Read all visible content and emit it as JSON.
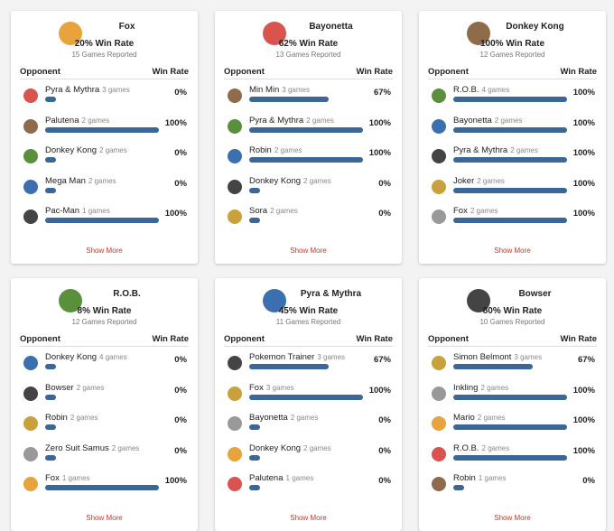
{
  "table_header": {
    "opponent": "Opponent",
    "win_rate": "Win Rate"
  },
  "show_more": "Show More",
  "cards": [
    {
      "character": "Fox",
      "win_rate": "20% Win Rate",
      "games": "15 Games Reported",
      "opponents": [
        {
          "name": "Pyra & Mythra",
          "games": "3 games",
          "win_rate": "0%"
        },
        {
          "name": "Palutena",
          "games": "2 games",
          "win_rate": "100%"
        },
        {
          "name": "Donkey Kong",
          "games": "2 games",
          "win_rate": "0%"
        },
        {
          "name": "Mega Man",
          "games": "2 games",
          "win_rate": "0%"
        },
        {
          "name": "Pac-Man",
          "games": "1 games",
          "win_rate": "100%"
        }
      ]
    },
    {
      "character": "Bayonetta",
      "win_rate": "62% Win Rate",
      "games": "13 Games Reported",
      "opponents": [
        {
          "name": "Min Min",
          "games": "3 games",
          "win_rate": "67%"
        },
        {
          "name": "Pyra & Mythra",
          "games": "2 games",
          "win_rate": "100%"
        },
        {
          "name": "Robin",
          "games": "2 games",
          "win_rate": "100%"
        },
        {
          "name": "Donkey Kong",
          "games": "2 games",
          "win_rate": "0%"
        },
        {
          "name": "Sora",
          "games": "2 games",
          "win_rate": "0%"
        }
      ]
    },
    {
      "character": "Donkey Kong",
      "win_rate": "100% Win Rate",
      "games": "12 Games Reported",
      "opponents": [
        {
          "name": "R.O.B.",
          "games": "4 games",
          "win_rate": "100%"
        },
        {
          "name": "Bayonetta",
          "games": "2 games",
          "win_rate": "100%"
        },
        {
          "name": "Pyra & Mythra",
          "games": "2 games",
          "win_rate": "100%"
        },
        {
          "name": "Joker",
          "games": "2 games",
          "win_rate": "100%"
        },
        {
          "name": "Fox",
          "games": "2 games",
          "win_rate": "100%"
        }
      ]
    },
    {
      "character": "R.O.B.",
      "win_rate": "8% Win Rate",
      "games": "12 Games Reported",
      "opponents": [
        {
          "name": "Donkey Kong",
          "games": "4 games",
          "win_rate": "0%"
        },
        {
          "name": "Bowser",
          "games": "2 games",
          "win_rate": "0%"
        },
        {
          "name": "Robin",
          "games": "2 games",
          "win_rate": "0%"
        },
        {
          "name": "Zero Suit Samus",
          "games": "2 games",
          "win_rate": "0%"
        },
        {
          "name": "Fox",
          "games": "1 games",
          "win_rate": "100%"
        }
      ]
    },
    {
      "character": "Pyra & Mythra",
      "win_rate": "45% Win Rate",
      "games": "11 Games Reported",
      "opponents": [
        {
          "name": "Pokemon Trainer",
          "games": "3 games",
          "win_rate": "67%"
        },
        {
          "name": "Fox",
          "games": "3 games",
          "win_rate": "100%"
        },
        {
          "name": "Bayonetta",
          "games": "2 games",
          "win_rate": "0%"
        },
        {
          "name": "Donkey Kong",
          "games": "2 games",
          "win_rate": "0%"
        },
        {
          "name": "Palutena",
          "games": "1 games",
          "win_rate": "0%"
        }
      ]
    },
    {
      "character": "Bowser",
      "win_rate": "80% Win Rate",
      "games": "10 Games Reported",
      "opponents": [
        {
          "name": "Simon Belmont",
          "games": "3 games",
          "win_rate": "67%"
        },
        {
          "name": "Inkling",
          "games": "2 games",
          "win_rate": "100%"
        },
        {
          "name": "Mario",
          "games": "2 games",
          "win_rate": "100%"
        },
        {
          "name": "R.O.B.",
          "games": "2 games",
          "win_rate": "100%"
        },
        {
          "name": "Robin",
          "games": "1 games",
          "win_rate": "0%"
        }
      ]
    }
  ]
}
